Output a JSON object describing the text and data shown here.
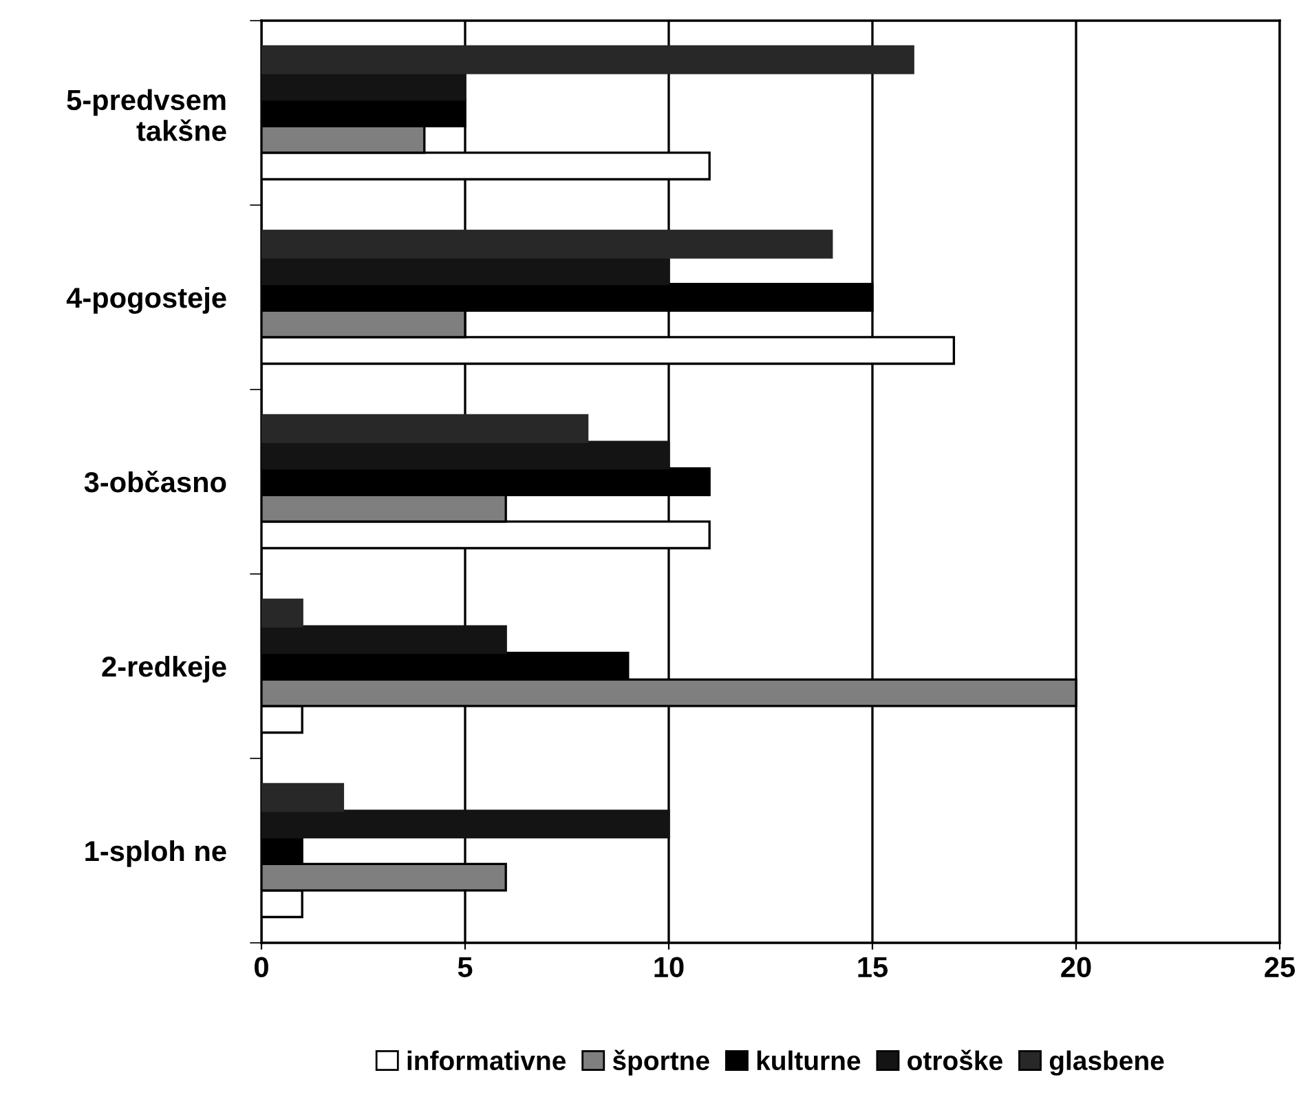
{
  "chart_data": {
    "type": "bar",
    "orientation": "horizontal",
    "categories": [
      "5-predvsem\ntakšne",
      "4-pogosteje",
      "3-občasno",
      "2-redkeje",
      "1-sploh ne"
    ],
    "series": [
      {
        "name": "informativne",
        "color": "#ffffff",
        "values": [
          11,
          17,
          11,
          1,
          1
        ]
      },
      {
        "name": "športne",
        "color": "#7f7f7f",
        "values": [
          4,
          5,
          6,
          20,
          6
        ]
      },
      {
        "name": "kulturne",
        "color": "#000000",
        "values": [
          5,
          15,
          11,
          9,
          1
        ]
      },
      {
        "name": "otroške",
        "color": "#141414",
        "values": [
          5,
          10,
          10,
          6,
          10
        ]
      },
      {
        "name": "glasbene",
        "color": "#282828",
        "values": [
          16,
          14,
          8,
          1,
          2
        ]
      }
    ],
    "xlim": [
      0,
      25
    ],
    "xticks": [
      0,
      5,
      10,
      15,
      20,
      25
    ],
    "grid": "x",
    "legend": "bottom"
  }
}
